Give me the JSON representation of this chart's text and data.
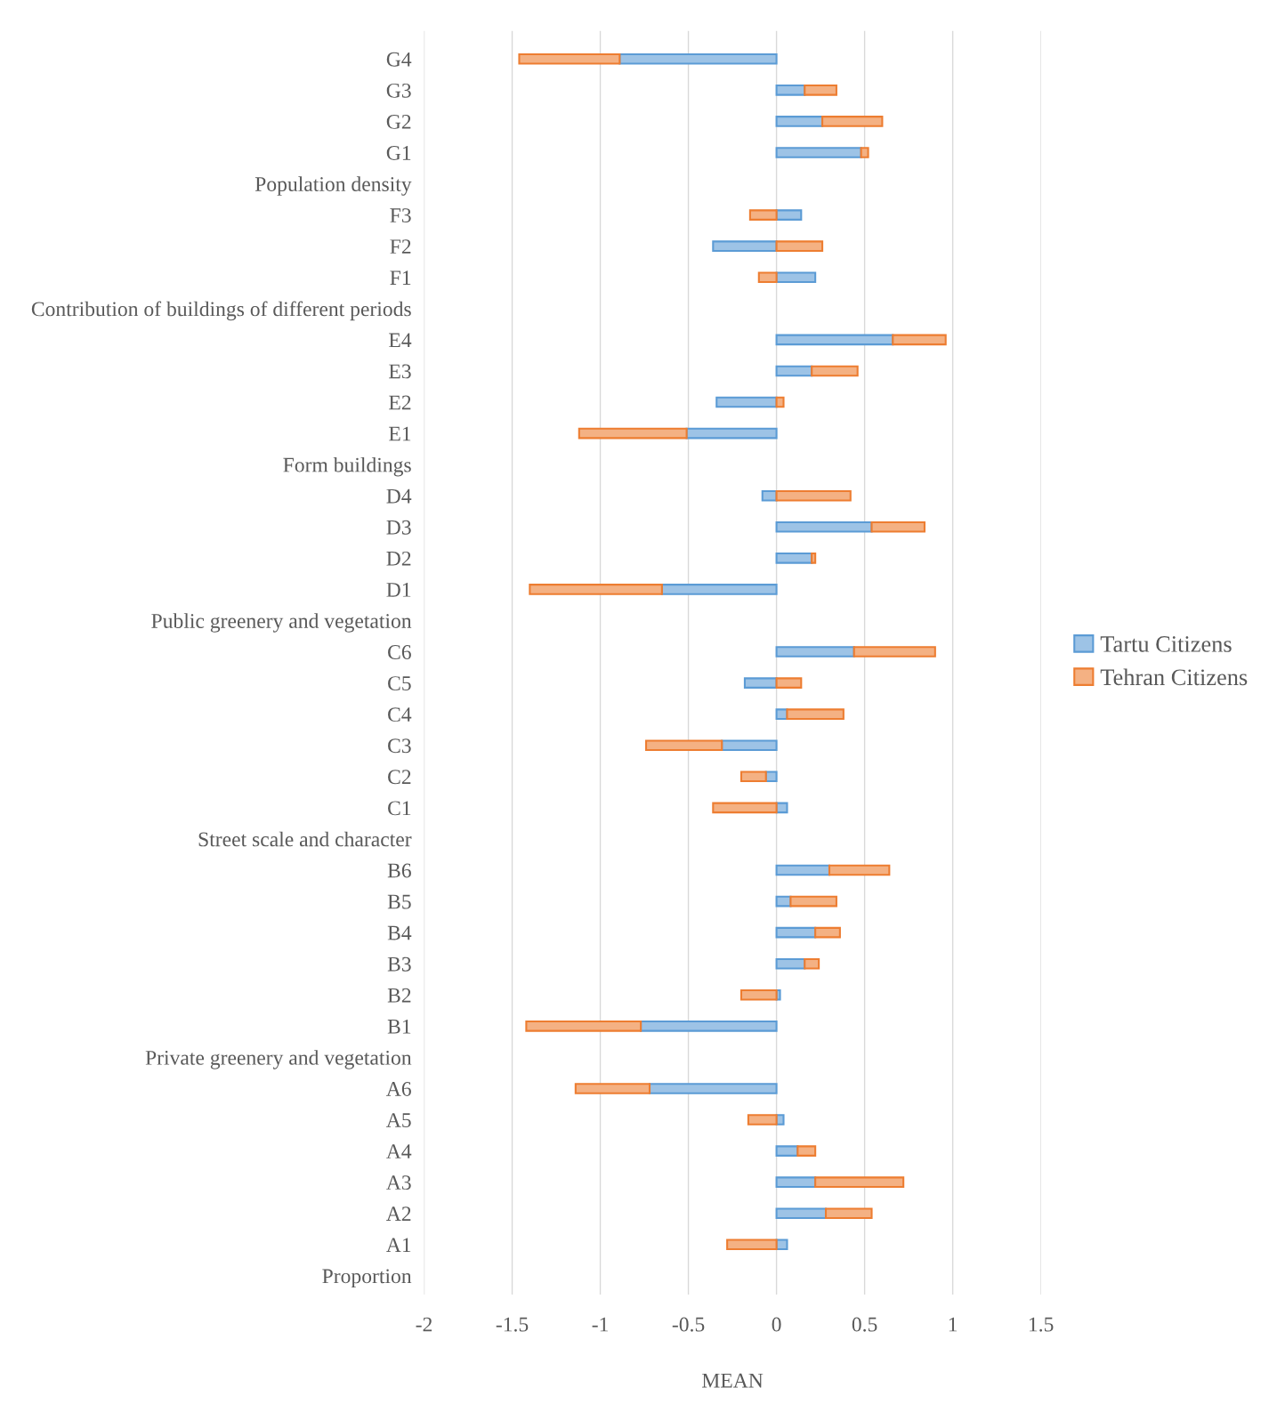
{
  "chart_data": {
    "type": "bar",
    "orientation": "horizontal",
    "stacked": true,
    "xlabel": "MEAN",
    "categories": [
      "G4",
      "G3",
      "G2",
      "G1",
      "Population density",
      "F3",
      "F2",
      "F1",
      "Contribution of buildings of different periods",
      "E4",
      "E3",
      "E2",
      "E1",
      "Form buildings",
      "D4",
      "D3",
      "D2",
      "D1",
      "Public greenery and vegetation",
      "C6",
      "C5",
      "C4",
      "C3",
      "C2",
      "C1",
      "Street scale and character",
      "B6",
      "B5",
      "B4",
      "B3",
      "B2",
      "B1",
      "Private greenery and vegetation",
      "A6",
      "A5",
      "A4",
      "A3",
      "A2",
      "A1",
      "Proportion"
    ],
    "series": [
      {
        "name": "Tartu Citizens",
        "color": "#9dc3e6",
        "values": [
          -0.89,
          0.16,
          0.26,
          0.48,
          null,
          0.14,
          -0.36,
          0.22,
          null,
          0.66,
          0.2,
          -0.34,
          -0.51,
          null,
          -0.08,
          0.54,
          0.2,
          -0.65,
          null,
          0.44,
          -0.18,
          0.06,
          -0.31,
          -0.06,
          0.06,
          null,
          0.3,
          0.08,
          0.22,
          0.16,
          0.02,
          -0.77,
          null,
          -0.72,
          0.04,
          0.12,
          0.22,
          0.28,
          0.06,
          null
        ]
      },
      {
        "name": "Tehran Citizens",
        "color": "#f4b183",
        "values": [
          -0.57,
          0.18,
          0.34,
          0.04,
          null,
          -0.15,
          0.26,
          -0.1,
          null,
          0.3,
          0.26,
          0.04,
          -0.61,
          null,
          0.42,
          0.3,
          0.02,
          -0.75,
          null,
          0.46,
          0.14,
          0.32,
          -0.43,
          -0.14,
          -0.36,
          null,
          0.34,
          0.26,
          0.14,
          0.08,
          -0.2,
          -0.65,
          null,
          -0.42,
          -0.16,
          0.1,
          0.5,
          0.26,
          -0.28,
          null
        ]
      }
    ],
    "xlim": [
      -2,
      1.5
    ],
    "xticks": [
      -2,
      -1.5,
      -1,
      -0.5,
      0,
      0.5,
      1,
      1.5
    ],
    "grid": "x",
    "legend": "right"
  }
}
